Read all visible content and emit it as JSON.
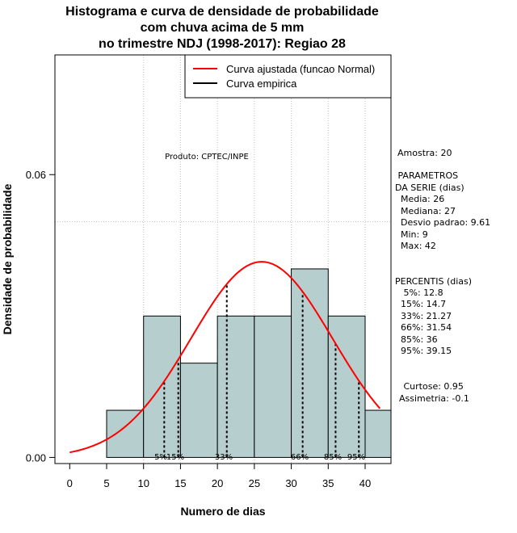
{
  "chart_data": {
    "type": "histogram",
    "title": [
      "Histograma e curva de densidade de probabilidade",
      "com chuva acima de 5 mm",
      "no trimestre NDJ (1998-2017): Regiao 28"
    ],
    "xlabel": "Numero de dias",
    "ylabel": "Densidade de probabilidade",
    "xlim": [
      -2,
      43.5
    ],
    "ylim": [
      -0.0013,
      0.0854
    ],
    "x_ticks": [
      0,
      5,
      10,
      15,
      20,
      25,
      30,
      35,
      40
    ],
    "y_ticks": [
      0.0,
      0.06
    ],
    "y_tick_labels": [
      "0.00",
      "0.06"
    ],
    "grid_x": [
      10,
      15,
      20,
      25,
      30,
      35,
      40
    ],
    "grid_y": [
      0.05
    ],
    "bars": [
      {
        "x0": 5,
        "x1": 10,
        "density": 0.01
      },
      {
        "x0": 10,
        "x1": 15,
        "density": 0.03
      },
      {
        "x0": 15,
        "x1": 20,
        "density": 0.02
      },
      {
        "x0": 20,
        "x1": 25,
        "density": 0.03
      },
      {
        "x0": 25,
        "x1": 30,
        "density": 0.03
      },
      {
        "x0": 30,
        "x1": 35,
        "density": 0.04
      },
      {
        "x0": 35,
        "x1": 40,
        "density": 0.03
      },
      {
        "x0": 40,
        "x1": 44,
        "density": 0.01
      }
    ],
    "normal_fit": {
      "mean": 26,
      "sd": 9.61,
      "x_from": 0,
      "x_to": 42,
      "color": "#ff0000"
    },
    "percentile_lines": [
      {
        "label": "5%",
        "x": 12.8
      },
      {
        "label": "15%",
        "x": 14.7
      },
      {
        "label": "33%",
        "x": 21.27
      },
      {
        "label": "66%",
        "x": 31.54
      },
      {
        "label": "85%",
        "x": 36
      },
      {
        "label": "95%",
        "x": 39.15
      }
    ],
    "legend": {
      "position": "top-right",
      "entries": [
        {
          "label": "Curva ajustada (funcao Normal)",
          "color": "#ff0000"
        },
        {
          "label": "Curva empirica",
          "color": "#000000"
        }
      ]
    },
    "annotation": "Produto: CPTEC/INPE",
    "bar_fill": "#b6cece",
    "grid_color": "#bebebe"
  },
  "stats": {
    "amostra": "Amostra: 20",
    "params_title": " PARAMETROS\nDA SERIE (dias)",
    "media": "  Media: 26",
    "mediana": "  Mediana: 27",
    "desvio": "  Desvio padrao: 9.61",
    "min": "  Min: 9",
    "max": "  Max: 42",
    "percentis_title": "PERCENTIS (dias)",
    "p5": "   5%: 12.8",
    "p15": "  15%: 14.7",
    "p33": "  33%: 21.27",
    "p66": "  66%: 31.54",
    "p85": "  85%: 36",
    "p95": "  95%: 39.15",
    "curtose": "   Curtose: 0.95",
    "assimetria": "Assimetria: -0.1"
  }
}
